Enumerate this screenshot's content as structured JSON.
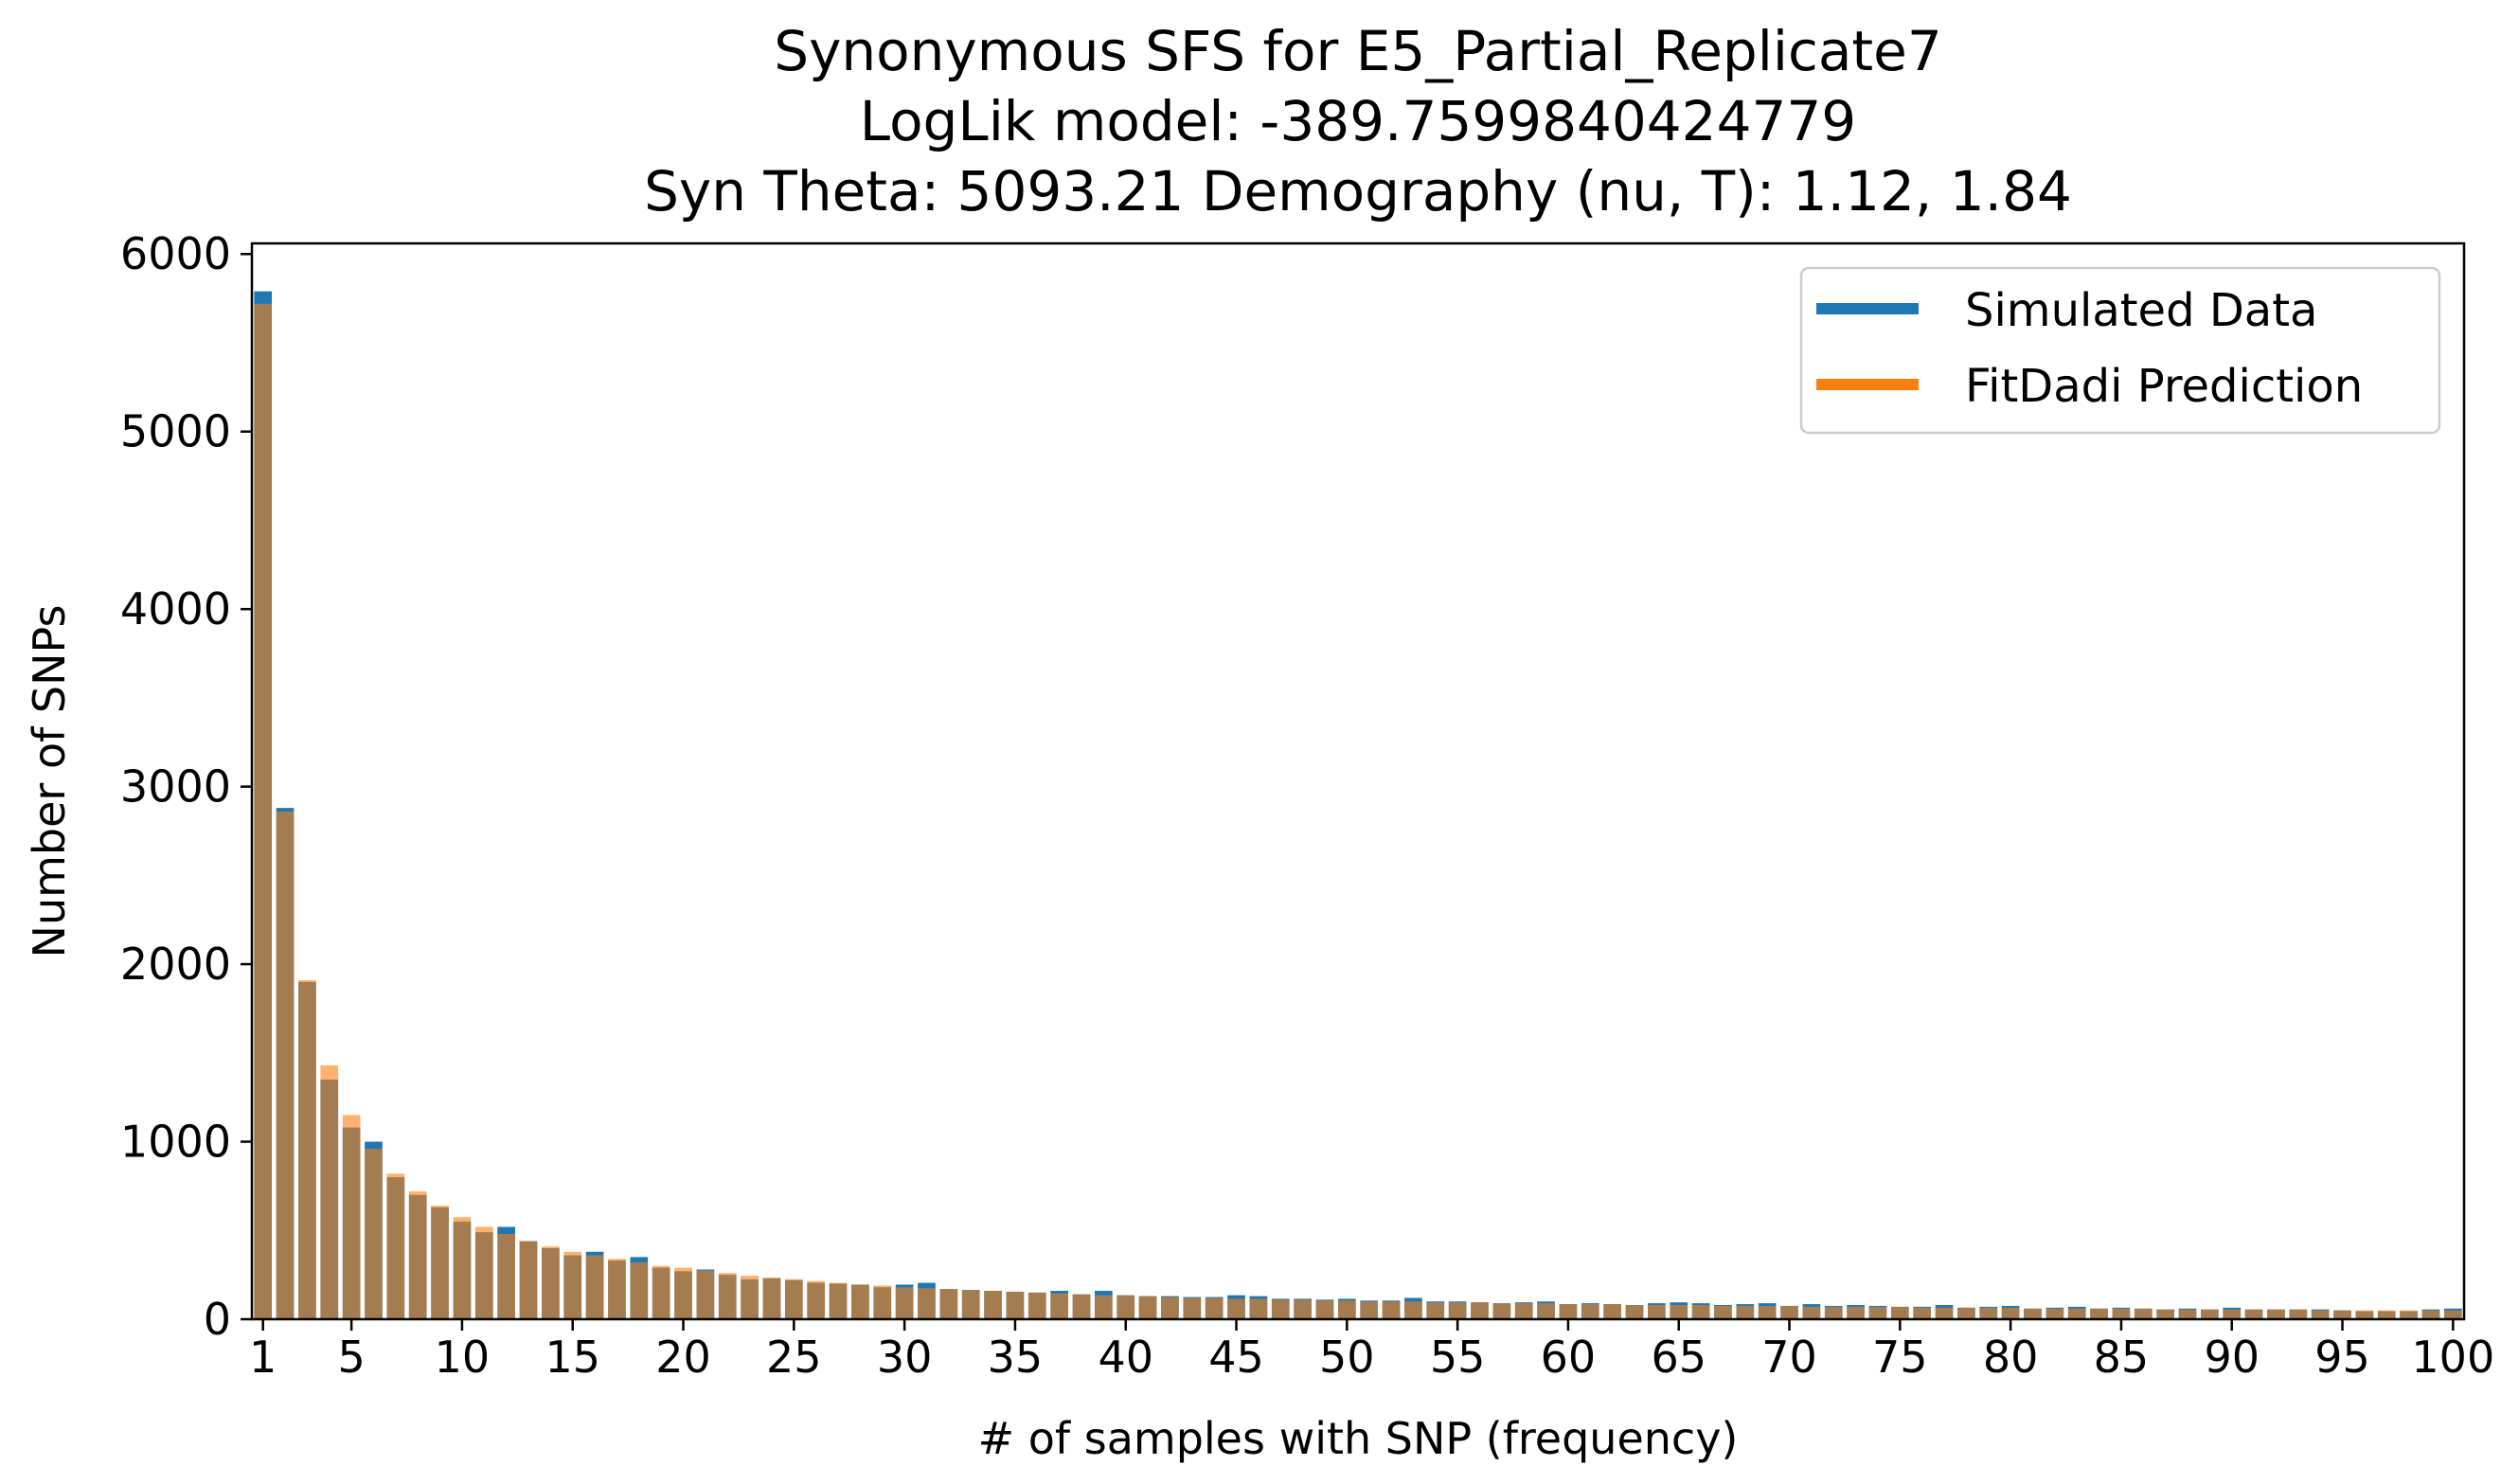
{
  "chart_data": {
    "type": "bar",
    "title_lines": [
      "Synonymous SFS for E5_Partial_Replicate7",
      "LogLik model: -389.7599840424779",
      "Syn Theta: 5093.21 Demography (nu, T): 1.12, 1.84"
    ],
    "xlabel": "# of samples with SNP (frequency)",
    "ylabel": "Number of SNPs",
    "xlim": [
      0.5,
      100.5
    ],
    "ylim": [
      0,
      6060
    ],
    "xticks": [
      1,
      5,
      10,
      15,
      20,
      25,
      30,
      35,
      40,
      45,
      50,
      55,
      60,
      65,
      70,
      75,
      80,
      85,
      90,
      95,
      100
    ],
    "xtick_labels": [
      "1",
      "5",
      "10",
      "15",
      "20",
      "25",
      "30",
      "35",
      "40",
      "45",
      "50",
      "55",
      "60",
      "65",
      "70",
      "75",
      "80",
      "85",
      "90",
      "95",
      "100"
    ],
    "yticks": [
      0,
      1000,
      2000,
      3000,
      4000,
      5000,
      6000
    ],
    "ytick_labels": [
      "0",
      "1000",
      "2000",
      "3000",
      "4000",
      "5000",
      "6000"
    ],
    "legend_position": "top-right",
    "x": [
      1,
      2,
      3,
      4,
      5,
      6,
      7,
      8,
      9,
      10,
      11,
      12,
      13,
      14,
      15,
      16,
      17,
      18,
      19,
      20,
      21,
      22,
      23,
      24,
      25,
      26,
      27,
      28,
      29,
      30,
      31,
      32,
      33,
      34,
      35,
      36,
      37,
      38,
      39,
      40,
      41,
      42,
      43,
      44,
      45,
      46,
      47,
      48,
      49,
      50,
      51,
      52,
      53,
      54,
      55,
      56,
      57,
      58,
      59,
      60,
      61,
      62,
      63,
      64,
      65,
      66,
      67,
      68,
      69,
      70,
      71,
      72,
      73,
      74,
      75,
      76,
      77,
      78,
      79,
      80,
      81,
      82,
      83,
      84,
      85,
      86,
      87,
      88,
      89,
      90,
      91,
      92,
      93,
      94,
      95,
      96,
      97,
      98,
      99,
      100
    ],
    "series": [
      {
        "name": "Simulated Data",
        "color": "#1f77b4",
        "values": [
          5790,
          2880,
          1900,
          1350,
          1080,
          1000,
          800,
          700,
          630,
          550,
          490,
          520,
          440,
          400,
          360,
          380,
          330,
          350,
          290,
          270,
          280,
          250,
          225,
          230,
          220,
          205,
          200,
          195,
          180,
          195,
          205,
          170,
          165,
          160,
          155,
          150,
          160,
          140,
          160,
          135,
          130,
          130,
          125,
          125,
          135,
          130,
          115,
          115,
          110,
          115,
          105,
          105,
          120,
          100,
          100,
          95,
          90,
          95,
          100,
          85,
          90,
          85,
          80,
          90,
          95,
          90,
          80,
          85,
          90,
          75,
          85,
          75,
          80,
          75,
          70,
          70,
          80,
          65,
          70,
          75,
          60,
          65,
          70,
          60,
          65,
          60,
          55,
          60,
          55,
          65,
          55,
          55,
          55,
          55,
          50,
          45,
          45,
          45,
          55,
          60
        ]
      },
      {
        "name": "FitDadi Prediction",
        "color": "#ff7f0e",
        "values": [
          5720,
          2860,
          1910,
          1430,
          1150,
          960,
          820,
          720,
          640,
          575,
          520,
          480,
          440,
          410,
          380,
          360,
          340,
          320,
          300,
          290,
          275,
          260,
          245,
          235,
          225,
          215,
          205,
          195,
          190,
          180,
          175,
          170,
          165,
          160,
          155,
          150,
          145,
          140,
          135,
          135,
          130,
          125,
          120,
          120,
          115,
          115,
          110,
          110,
          105,
          105,
          100,
          100,
          100,
          95,
          95,
          95,
          90,
          90,
          90,
          85,
          85,
          85,
          80,
          80,
          80,
          80,
          75,
          75,
          75,
          75,
          70,
          70,
          70,
          70,
          70,
          65,
          65,
          65,
          65,
          65,
          60,
          60,
          60,
          60,
          60,
          60,
          55,
          55,
          55,
          55,
          55,
          55,
          55,
          50,
          50,
          50,
          50,
          50,
          50,
          50
        ]
      }
    ]
  }
}
